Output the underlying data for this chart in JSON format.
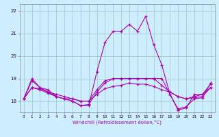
{
  "xlabel": "Windchill (Refroidissement éolien,°C)",
  "bg_color": "#cceeff",
  "grid_color": "#aacccc",
  "line_color": "#aa00aa",
  "hours": [
    0,
    1,
    2,
    3,
    4,
    5,
    6,
    7,
    8,
    9,
    10,
    11,
    12,
    13,
    14,
    15,
    16,
    17,
    18,
    19,
    20,
    21,
    22,
    23
  ],
  "series": [
    [
      18.1,
      18.9,
      18.6,
      18.4,
      18.2,
      18.1,
      18.0,
      17.8,
      17.85,
      18.4,
      18.8,
      19.0,
      19.0,
      19.0,
      19.0,
      19.0,
      19.0,
      19.0,
      18.3,
      17.65,
      17.75,
      18.1,
      18.15,
      18.8
    ],
    [
      18.1,
      18.6,
      18.55,
      18.4,
      18.3,
      18.2,
      18.1,
      18.0,
      18.0,
      18.5,
      18.9,
      19.0,
      19.0,
      19.0,
      19.0,
      19.0,
      19.0,
      18.7,
      18.4,
      18.2,
      18.1,
      18.15,
      18.2,
      18.6
    ],
    [
      18.1,
      18.6,
      18.5,
      18.35,
      18.2,
      18.1,
      18.1,
      18.0,
      18.0,
      18.3,
      18.55,
      18.65,
      18.7,
      18.8,
      18.75,
      18.75,
      18.65,
      18.5,
      18.4,
      18.2,
      18.1,
      18.2,
      18.3,
      18.6
    ],
    [
      18.1,
      19.0,
      18.6,
      18.5,
      18.2,
      18.1,
      18.0,
      17.8,
      17.8,
      19.3,
      20.6,
      21.1,
      21.1,
      21.4,
      21.1,
      21.75,
      20.5,
      19.6,
      18.3,
      17.6,
      17.7,
      18.3,
      18.3,
      18.75
    ]
  ],
  "yticks": [
    18,
    19,
    20,
    21,
    22
  ],
  "ylim": [
    17.5,
    22.3
  ],
  "xlim": [
    -0.5,
    23.5
  ]
}
